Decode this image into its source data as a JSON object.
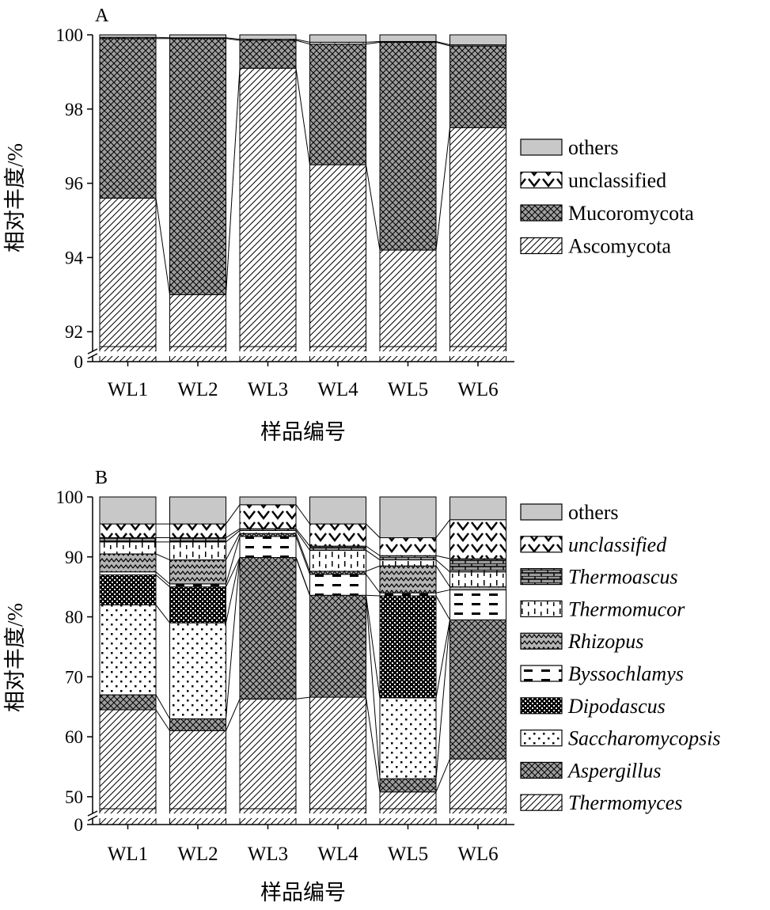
{
  "chart_data": [
    {
      "panel": "A",
      "type": "bar",
      "stacked": true,
      "xlabel": "样品编号",
      "ylabel": "相对丰度/%",
      "categories": [
        "WL1",
        "WL2",
        "WL3",
        "WL4",
        "WL5",
        "WL6"
      ],
      "axis_break": {
        "lower_tick": 0,
        "upper_start": 91.6,
        "upper_end": 100
      },
      "yticks": [
        92,
        94,
        96,
        98,
        100
      ],
      "series": [
        {
          "name": "Ascomycota",
          "italic": false,
          "pattern": "diag",
          "values": [
            95.6,
            93.0,
            99.1,
            96.5,
            94.2,
            97.5
          ]
        },
        {
          "name": "Mucoromycota",
          "italic": false,
          "pattern": "crosshatch",
          "values": [
            4.3,
            6.9,
            0.75,
            3.25,
            5.6,
            2.2
          ]
        },
        {
          "name": "unclassified",
          "italic": false,
          "pattern": "zigzag",
          "values": [
            0.03,
            0.02,
            0.03,
            0.05,
            0.02,
            0.03
          ]
        },
        {
          "name": "others",
          "italic": false,
          "pattern": "gray",
          "values": [
            0.07,
            0.08,
            0.12,
            0.2,
            0.18,
            0.27
          ]
        }
      ],
      "legend": [
        "others",
        "unclassified",
        "Mucoromycota",
        "Ascomycota"
      ]
    },
    {
      "panel": "B",
      "type": "bar",
      "stacked": true,
      "xlabel": "样品编号",
      "ylabel": "相对丰度/%",
      "categories": [
        "WL1",
        "WL2",
        "WL3",
        "WL4",
        "WL5",
        "WL6"
      ],
      "axis_break": {
        "lower_tick": 0,
        "upper_start": 48,
        "upper_end": 100
      },
      "yticks": [
        50,
        60,
        70,
        80,
        90,
        100
      ],
      "series": [
        {
          "name": "Thermomyces",
          "italic": true,
          "pattern": "diag",
          "values": [
            64.5,
            61.0,
            66.3,
            66.6,
            50.8,
            56.3
          ]
        },
        {
          "name": "Aspergillus",
          "italic": true,
          "pattern": "crosshatch",
          "values": [
            2.5,
            2.0,
            23.6,
            17.0,
            2.2,
            23.2
          ]
        },
        {
          "name": "Saccharomycopsis",
          "italic": true,
          "pattern": "dots",
          "values": [
            15.0,
            16.0,
            0.0,
            0.0,
            13.5,
            0.0
          ]
        },
        {
          "name": "Dipodascus",
          "italic": true,
          "pattern": "checker",
          "values": [
            5.0,
            6.0,
            0.0,
            0.0,
            17.0,
            0.0
          ]
        },
        {
          "name": "Byssochlamys",
          "italic": true,
          "pattern": "dashes",
          "values": [
            0.5,
            0.5,
            3.5,
            3.5,
            0.5,
            5.0
          ]
        },
        {
          "name": "Rhizopus",
          "italic": true,
          "pattern": "wave",
          "values": [
            3.0,
            4.0,
            0.5,
            0.5,
            4.5,
            0.5
          ]
        },
        {
          "name": "Thermomucor",
          "italic": true,
          "pattern": "ticks",
          "values": [
            2.0,
            3.0,
            0.5,
            3.5,
            1.0,
            2.5
          ]
        },
        {
          "name": "Thermoascus",
          "italic": true,
          "pattern": "brick",
          "values": [
            0.7,
            0.7,
            0.3,
            0.7,
            0.7,
            2.2
          ]
        },
        {
          "name": "unclassified",
          "italic": true,
          "pattern": "zigzag",
          "values": [
            2.3,
            2.3,
            4.0,
            3.7,
            3.0,
            6.5
          ]
        },
        {
          "name": "others",
          "italic": false,
          "pattern": "gray",
          "values": [
            4.5,
            4.5,
            1.3,
            4.5,
            6.8,
            3.8
          ]
        }
      ],
      "legend": [
        "others",
        "unclassified",
        "Thermoascus",
        "Thermomucor",
        "Rhizopus",
        "Byssochlamys",
        "Dipodascus",
        "Saccharomycopsis",
        "Aspergillus",
        "Thermomyces"
      ]
    }
  ]
}
